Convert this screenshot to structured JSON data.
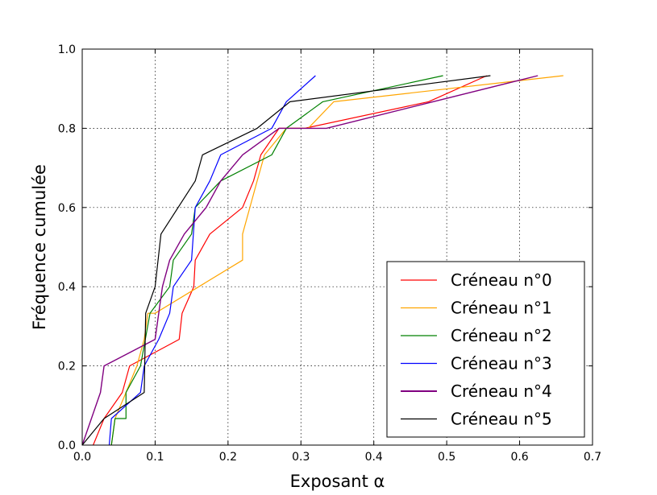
{
  "chart_data": {
    "type": "line",
    "title": "",
    "xlabel": "Exposant α",
    "ylabel": "Fréquence cumulée",
    "xlim": [
      0.0,
      0.7
    ],
    "ylim": [
      0.0,
      1.0
    ],
    "xticks": [
      "0.0",
      "0.1",
      "0.2",
      "0.3",
      "0.4",
      "0.5",
      "0.6",
      "0.7"
    ],
    "yticks": [
      "0.0",
      "0.2",
      "0.4",
      "0.6",
      "0.8",
      "1.0"
    ],
    "grid": true,
    "legend_position": "bottom-right",
    "series": [
      {
        "name": "Créneau n°0",
        "color": "#ff0000",
        "points": [
          [
            0.015,
            0.0
          ],
          [
            0.03,
            0.067
          ],
          [
            0.055,
            0.133
          ],
          [
            0.065,
            0.2
          ],
          [
            0.133,
            0.267
          ],
          [
            0.137,
            0.333
          ],
          [
            0.153,
            0.4
          ],
          [
            0.155,
            0.467
          ],
          [
            0.175,
            0.533
          ],
          [
            0.22,
            0.6
          ],
          [
            0.235,
            0.667
          ],
          [
            0.245,
            0.733
          ],
          [
            0.27,
            0.8
          ],
          [
            0.305,
            0.8
          ],
          [
            0.475,
            0.867
          ],
          [
            0.555,
            0.933
          ]
        ]
      },
      {
        "name": "Créneau n°1",
        "color": "#ffa500",
        "points": [
          [
            0.04,
            0.0
          ],
          [
            0.045,
            0.067
          ],
          [
            0.06,
            0.133
          ],
          [
            0.075,
            0.2
          ],
          [
            0.085,
            0.267
          ],
          [
            0.09,
            0.333
          ],
          [
            0.1,
            0.333
          ],
          [
            0.22,
            0.467
          ],
          [
            0.22,
            0.533
          ],
          [
            0.24,
            0.667
          ],
          [
            0.25,
            0.733
          ],
          [
            0.28,
            0.8
          ],
          [
            0.31,
            0.8
          ],
          [
            0.345,
            0.867
          ],
          [
            0.66,
            0.933
          ]
        ]
      },
      {
        "name": "Créneau n°2",
        "color": "#008000",
        "points": [
          [
            0.04,
            0.0
          ],
          [
            0.045,
            0.067
          ],
          [
            0.06,
            0.067
          ],
          [
            0.06,
            0.133
          ],
          [
            0.08,
            0.2
          ],
          [
            0.093,
            0.333
          ],
          [
            0.12,
            0.4
          ],
          [
            0.125,
            0.467
          ],
          [
            0.15,
            0.533
          ],
          [
            0.155,
            0.6
          ],
          [
            0.19,
            0.667
          ],
          [
            0.26,
            0.733
          ],
          [
            0.28,
            0.8
          ],
          [
            0.33,
            0.867
          ],
          [
            0.495,
            0.933
          ]
        ]
      },
      {
        "name": "Créneau n°3",
        "color": "#0000ff",
        "points": [
          [
            0.037,
            0.0
          ],
          [
            0.04,
            0.067
          ],
          [
            0.08,
            0.133
          ],
          [
            0.085,
            0.2
          ],
          [
            0.105,
            0.267
          ],
          [
            0.12,
            0.333
          ],
          [
            0.125,
            0.4
          ],
          [
            0.15,
            0.467
          ],
          [
            0.155,
            0.6
          ],
          [
            0.175,
            0.667
          ],
          [
            0.19,
            0.733
          ],
          [
            0.26,
            0.8
          ],
          [
            0.28,
            0.867
          ],
          [
            0.32,
            0.933
          ]
        ]
      },
      {
        "name": "Créneau n°4",
        "color": "#800080",
        "points": [
          [
            0.0,
            0.0
          ],
          [
            0.025,
            0.133
          ],
          [
            0.03,
            0.2
          ],
          [
            0.1,
            0.267
          ],
          [
            0.11,
            0.4
          ],
          [
            0.12,
            0.467
          ],
          [
            0.14,
            0.533
          ],
          [
            0.17,
            0.6
          ],
          [
            0.19,
            0.667
          ],
          [
            0.22,
            0.733
          ],
          [
            0.27,
            0.8
          ],
          [
            0.335,
            0.8
          ],
          [
            0.625,
            0.933
          ]
        ]
      },
      {
        "name": "Créneau n°5",
        "color": "#000000",
        "points": [
          [
            0.0,
            0.0
          ],
          [
            0.03,
            0.067
          ],
          [
            0.085,
            0.133
          ],
          [
            0.087,
            0.333
          ],
          [
            0.1,
            0.4
          ],
          [
            0.108,
            0.533
          ],
          [
            0.155,
            0.667
          ],
          [
            0.165,
            0.733
          ],
          [
            0.24,
            0.8
          ],
          [
            0.285,
            0.867
          ],
          [
            0.56,
            0.933
          ]
        ]
      }
    ]
  }
}
